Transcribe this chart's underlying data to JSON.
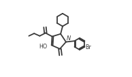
{
  "bg_color": "#ffffff",
  "line_color": "#3a3a3a",
  "line_width": 1.3,
  "figsize": [
    1.94,
    1.14
  ],
  "dpi": 100,
  "xlim": [
    0.0,
    1.0
  ],
  "ylim": [
    0.0,
    1.0
  ]
}
